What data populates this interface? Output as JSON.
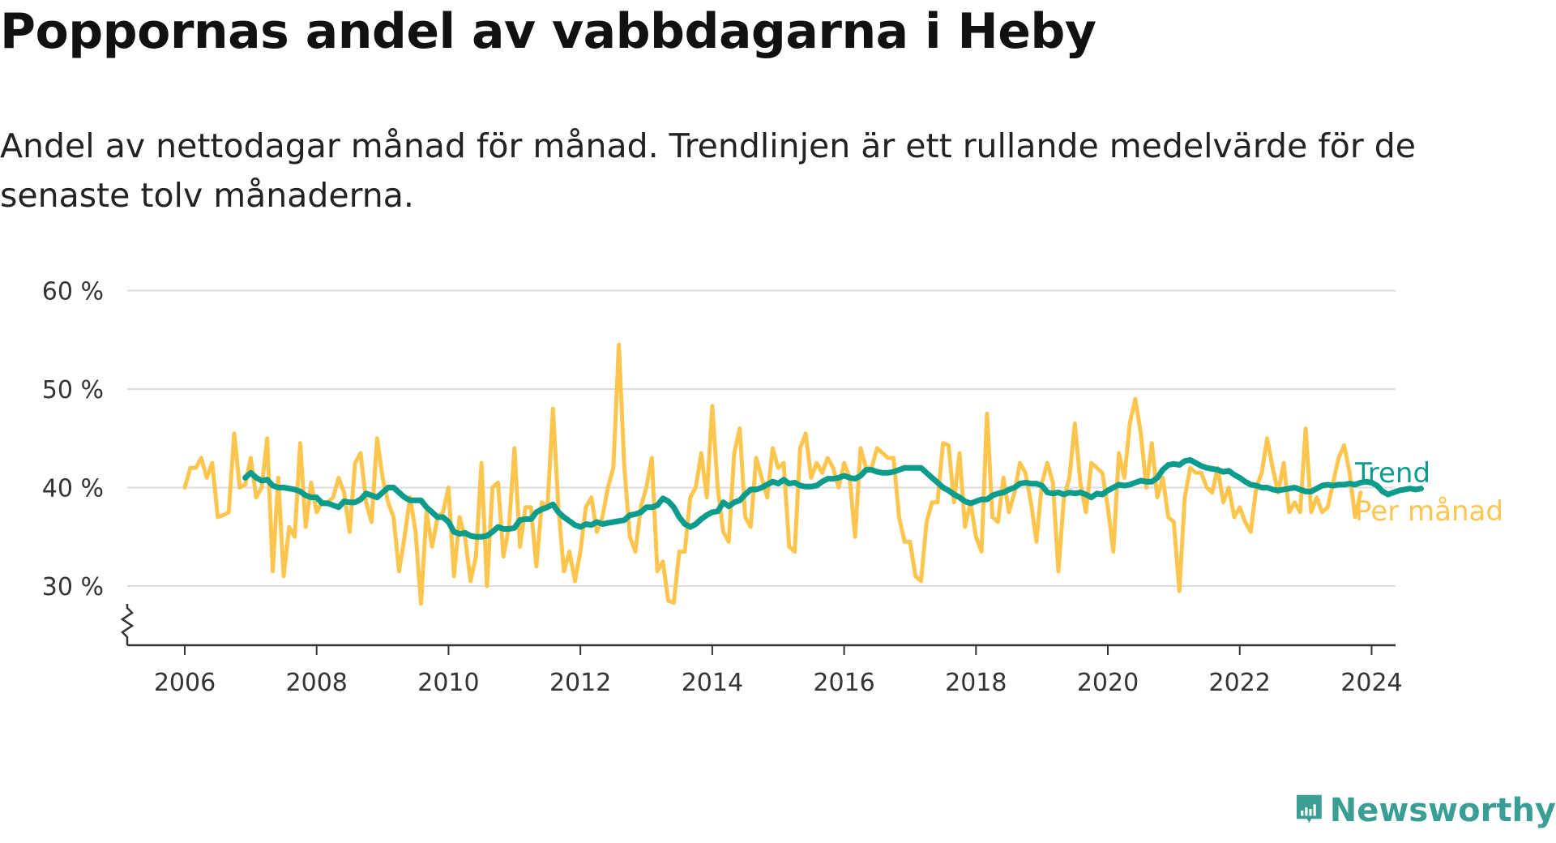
{
  "title": "Poppornas andel av vabbdagarna i Heby",
  "subtitle": "Andel av nettodagar månad för månad. Trendlinjen är ett rullande medelvärde för de senaste tolv månaderna.",
  "brand": {
    "name": "Newsworthy",
    "icon": "newsworthy-bar-chart-icon",
    "color": "#3a9e95"
  },
  "chart_data": {
    "type": "line",
    "xlim": [
      2006,
      2024.4
    ],
    "ylim": [
      24,
      60
    ],
    "x_ticks": [
      "2006",
      "2008",
      "2010",
      "2012",
      "2014",
      "2016",
      "2018",
      "2020",
      "2022",
      "2024"
    ],
    "y_ticks": [
      {
        "value": 30,
        "label": "30 %"
      },
      {
        "value": 40,
        "label": "40 %"
      },
      {
        "value": 50,
        "label": "50 %"
      },
      {
        "value": 60,
        "label": "60 %"
      }
    ],
    "axis_break": true,
    "grid": true,
    "series": [
      {
        "name": "Per månad",
        "color": "#fcc54d",
        "start": 2006.0,
        "step": 0.0833333,
        "values": [
          40,
          42,
          42,
          43,
          41,
          42.5,
          37,
          37.2,
          37.5,
          45.5,
          40,
          40.3,
          43,
          39,
          40,
          45,
          31.5,
          41,
          31,
          36,
          35,
          44.5,
          36,
          40.5,
          37.5,
          38.5,
          38.5,
          39,
          41,
          39.5,
          35.5,
          42.5,
          43.5,
          38.5,
          36.5,
          45,
          41,
          38.5,
          37,
          31.5,
          35,
          39,
          35.5,
          28.2,
          37.5,
          34,
          37,
          37.5,
          40,
          31,
          37,
          35,
          30.5,
          33,
          42.5,
          30,
          40,
          40.5,
          33,
          36,
          44,
          34,
          38,
          38,
          32,
          38.5,
          38,
          48,
          38,
          31.5,
          33.5,
          30.5,
          33.5,
          38,
          39,
          35.5,
          37,
          40,
          42,
          54.5,
          42,
          35,
          33.5,
          38,
          40,
          43,
          31.5,
          32.5,
          28.5,
          28.3,
          33.5,
          33.5,
          39,
          40,
          43.5,
          39,
          48.3,
          40,
          35.5,
          34.5,
          43.5,
          46,
          37,
          36,
          43,
          41,
          39,
          44,
          42,
          42.5,
          34,
          33.5,
          44,
          45.5,
          41,
          42.5,
          41.5,
          43,
          42,
          40,
          42.5,
          41,
          35,
          44,
          42,
          42,
          44,
          43.5,
          43,
          43,
          37,
          34.5,
          34.5,
          31,
          30.5,
          36.5,
          38.5,
          38.5,
          44.5,
          44.3,
          38.5,
          43.5,
          36,
          38.5,
          35,
          33.5,
          47.5,
          37,
          36.5,
          41,
          37.5,
          39.5,
          42.5,
          41.5,
          38.5,
          34.5,
          40.5,
          42.5,
          40.5,
          31.5,
          39,
          41,
          46.5,
          40.5,
          37.5,
          42.5,
          42,
          41.5,
          38,
          33.5,
          43.5,
          41,
          46.5,
          49,
          45.5,
          40,
          44.5,
          39,
          41,
          37,
          36.5,
          29.5,
          39,
          42,
          41.5,
          41.5,
          40,
          39.5,
          42,
          38.5,
          40,
          37,
          38,
          36.5,
          35.5,
          40,
          41.5,
          45,
          42,
          39.5,
          42.5,
          37.5,
          38.5,
          37.5,
          46,
          37.5,
          39,
          37.5,
          38,
          40.5,
          43,
          44.3,
          41.5,
          37,
          39.5
        ]
      },
      {
        "name": "Trend",
        "color": "#0d9b8c",
        "start": 2006.917,
        "step": 0.0833333,
        "values": [
          41,
          41.5,
          41,
          40.7,
          40.8,
          40.2,
          40,
          40,
          39.9,
          39.8,
          39.6,
          39.2,
          39,
          39,
          38.4,
          38.4,
          38.2,
          38,
          38.6,
          38.5,
          38.5,
          38.8,
          39.4,
          39.2,
          39,
          39.5,
          40,
          40,
          39.5,
          39,
          38.7,
          38.7,
          38.7,
          38,
          37.5,
          37,
          37,
          36.5,
          35.5,
          35.3,
          35.4,
          35.1,
          35,
          35,
          35.1,
          35.5,
          36,
          35.8,
          35.8,
          35.9,
          36.7,
          36.8,
          36.8,
          37.5,
          37.8,
          38,
          38.3,
          37.5,
          37,
          36.6,
          36.2,
          36,
          36.3,
          36.2,
          36.5,
          36.3,
          36.4,
          36.5,
          36.6,
          36.7,
          37.2,
          37.3,
          37.5,
          38,
          38,
          38.2,
          38.9,
          38.6,
          38,
          37,
          36.3,
          36,
          36.3,
          36.8,
          37.2,
          37.5,
          37.6,
          38.5,
          38.1,
          38.5,
          38.7,
          39.3,
          39.8,
          39.8,
          40,
          40.3,
          40.6,
          40.4,
          40.8,
          40.4,
          40.5,
          40.2,
          40.1,
          40.1,
          40.2,
          40.6,
          40.9,
          40.9,
          41,
          41.2,
          41,
          40.9,
          41.2,
          41.8,
          41.8,
          41.6,
          41.5,
          41.5,
          41.6,
          41.8,
          42,
          42,
          42,
          42,
          41.5,
          41,
          40.5,
          40,
          39.7,
          39.3,
          39,
          38.6,
          38.4,
          38.6,
          38.8,
          38.8,
          39.2,
          39.4,
          39.5,
          39.8,
          40,
          40.4,
          40.5,
          40.4,
          40.4,
          40.2,
          39.5,
          39.4,
          39.5,
          39.3,
          39.5,
          39.4,
          39.5,
          39.3,
          39,
          39.4,
          39.3,
          39.7,
          40,
          40.3,
          40.2,
          40.3,
          40.5,
          40.7,
          40.6,
          40.6,
          41,
          41.8,
          42.3,
          42.4,
          42.3,
          42.7,
          42.8,
          42.5,
          42.2,
          42,
          41.9,
          41.8,
          41.6,
          41.7,
          41.3,
          41,
          40.6,
          40.3,
          40.2,
          40,
          40,
          39.8,
          39.7,
          39.8,
          39.9,
          40,
          39.8,
          39.6,
          39.6,
          39.9,
          40.2,
          40.3,
          40.2,
          40.3,
          40.3,
          40.4,
          40.3,
          40.5,
          40.6,
          40.5,
          40.2,
          39.6,
          39.3,
          39.5,
          39.7,
          39.8,
          39.9,
          39.8,
          39.9
        ]
      }
    ]
  }
}
